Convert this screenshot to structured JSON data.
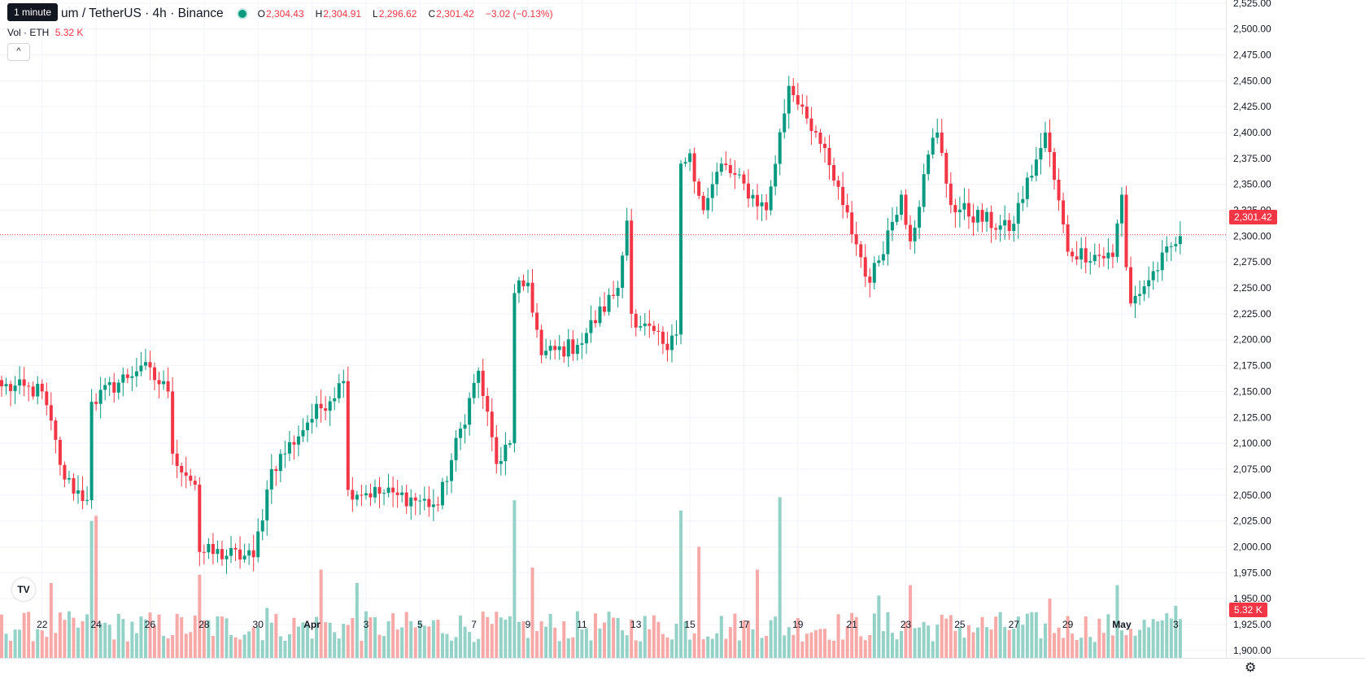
{
  "header": {
    "title": "um / TetherUS · 4h · Binance",
    "ohlc": [
      {
        "label": "O",
        "value": "2,304.43"
      },
      {
        "label": "H",
        "value": "2,304.91"
      },
      {
        "label": "L",
        "value": "2,296.62"
      },
      {
        "label": "C",
        "value": "2,301.42"
      }
    ],
    "change": "−3.02 (−0.13%)",
    "volume_label": "Vol · ETH",
    "volume_value": "5.32 K",
    "interval_tooltip": "1 minute",
    "collapse_icon": "chevron-up-icon",
    "logo": "TV"
  },
  "colors": {
    "up": "#089981",
    "down": "#f23645",
    "up_vol": "#94d1c6",
    "down_vol": "#f7a9a7",
    "grid": "#f0f3fa"
  },
  "chart_data": {
    "type": "candlestick",
    "title": "um / TetherUS · 4h · Binance",
    "price_axis": {
      "ylim": [
        1892,
        2528
      ],
      "ticks": [
        "2,525.00",
        "2,500.00",
        "2,475.00",
        "2,450.00",
        "2,425.00",
        "2,400.00",
        "2,375.00",
        "2,350.00",
        "2,325.00",
        "2,300.00",
        "2,275.00",
        "2,250.00",
        "2,225.00",
        "2,200.00",
        "2,175.00",
        "2,150.00",
        "2,125.00",
        "2,100.00",
        "2,075.00",
        "2,050.00",
        "2,025.00",
        "2,000.00",
        "1,975.00",
        "1,950.00",
        "1,925.00",
        "1,900.00"
      ],
      "last_price": "2,301.42",
      "volume_label": "5.32 K"
    },
    "time_axis": {
      "ticks": [
        "22",
        "24",
        "26",
        "28",
        "30",
        "Apr",
        "3",
        "5",
        "7",
        "9",
        "11",
        "13",
        "15",
        "17",
        "19",
        "21",
        "23",
        "25",
        "27",
        "29",
        "May",
        "3"
      ],
      "bold": [
        "Apr",
        "May"
      ],
      "tick_index": [
        9,
        21,
        33,
        45,
        57,
        69,
        81,
        93,
        105,
        117,
        129,
        141,
        153,
        165,
        177,
        189,
        201,
        213,
        225,
        237,
        249,
        261
      ]
    },
    "key_closes": [
      [
        0,
        2155
      ],
      [
        9,
        2150
      ],
      [
        14,
        2065
      ],
      [
        19,
        2045
      ],
      [
        20,
        2140
      ],
      [
        31,
        2175
      ],
      [
        37,
        2150
      ],
      [
        38,
        2090
      ],
      [
        43,
        2060
      ],
      [
        44,
        1995
      ],
      [
        56,
        1990
      ],
      [
        60,
        2075
      ],
      [
        68,
        2120
      ],
      [
        76,
        2160
      ],
      [
        77,
        2055
      ],
      [
        88,
        2050
      ],
      [
        97,
        2040
      ],
      [
        106,
        2170
      ],
      [
        110,
        2080
      ],
      [
        113,
        2100
      ],
      [
        114,
        2245
      ],
      [
        117,
        2255
      ],
      [
        120,
        2185
      ],
      [
        128,
        2195
      ],
      [
        137,
        2250
      ],
      [
        139,
        2315
      ],
      [
        140,
        2225
      ],
      [
        148,
        2190
      ],
      [
        150,
        2205
      ],
      [
        151,
        2370
      ],
      [
        153,
        2380
      ],
      [
        156,
        2325
      ],
      [
        160,
        2370
      ],
      [
        170,
        2325
      ],
      [
        175,
        2445
      ],
      [
        178,
        2425
      ],
      [
        181,
        2400
      ],
      [
        187,
        2330
      ],
      [
        193,
        2255
      ],
      [
        200,
        2340
      ],
      [
        202,
        2295
      ],
      [
        207,
        2395
      ],
      [
        208,
        2400
      ],
      [
        211,
        2330
      ],
      [
        224,
        2305
      ],
      [
        231,
        2385
      ],
      [
        232,
        2400
      ],
      [
        237,
        2285
      ],
      [
        247,
        2280
      ],
      [
        249,
        2340
      ],
      [
        250,
        2270
      ],
      [
        251,
        2235
      ],
      [
        262,
        2300
      ]
    ],
    "volume_peaks": [
      [
        11,
        1965
      ],
      [
        20,
        2025
      ],
      [
        21,
        2030
      ],
      [
        44,
        1973
      ],
      [
        59,
        1941
      ],
      [
        71,
        1978
      ],
      [
        79,
        1965
      ],
      [
        114,
        2045
      ],
      [
        118,
        1980
      ],
      [
        151,
        2035
      ],
      [
        155,
        2000
      ],
      [
        168,
        1978
      ],
      [
        173,
        2048
      ],
      [
        195,
        1953
      ],
      [
        202,
        1963
      ],
      [
        233,
        1950
      ],
      [
        248,
        1963
      ],
      [
        261,
        1943
      ]
    ]
  }
}
